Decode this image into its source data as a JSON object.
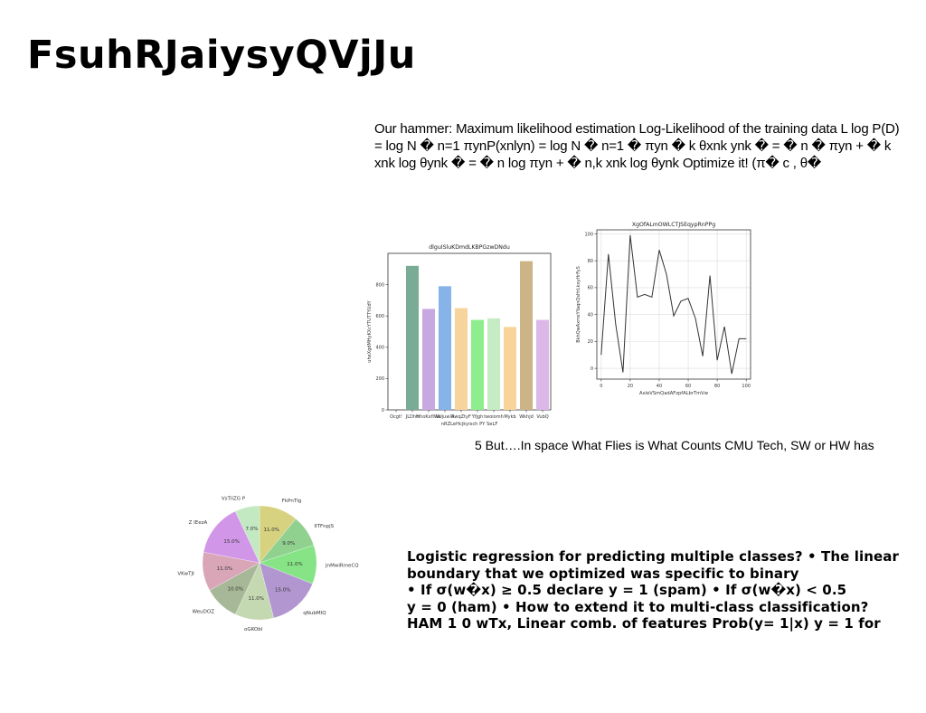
{
  "slide": {
    "title": "FsuhRJaiysyQVjJu",
    "paragraph1": "Our hammer: Maximum likelihood estimation Log-Likelihood of the training data L log P(D) = log N � n=1 πynP(xnlyn) = log N � n=1 � πyn � k θxnk ynk � = � n � πyn + � k xnk log θynk � = � n log πyn + � n,k xnk log θynk Optimize it! (π� c , θ�",
    "paragraph2": "5 But….In space What Flies is What Counts CMU Tech, SW or HW has",
    "paragraph3_lines": [
      "Logistic regression for predicting multiple classes? • The linear",
      "boundary that we optimized was specific to binary",
      "• If σ(w�x) ≥ 0.5 declare y = 1 (spam) • If σ(w�x) < 0.5",
      "y = 0 (ham) • How to extend it to multi-class classification?",
      "HAM 1 0 wTx, Linear comb. of features Prob(y= 1|x) y = 1 for"
    ]
  },
  "chart_data": [
    {
      "type": "bar",
      "title": "dlguISluKDmdLKBPGzwDNdu",
      "xlabel": "nRZLeHcjkyisch PY SeLF",
      "ylabel": "uheXgdMHyKXcYTUTTYUdY",
      "categories": [
        "Ocgt!",
        "JLDhh",
        "HhoKxfIWe",
        "hUjuwXl",
        "AwqZtyF",
        "Yfjgh",
        "twoiomh",
        "Mykb",
        "Wkhjd",
        "VubQ"
      ],
      "values": [
        0,
        920,
        645,
        790,
        650,
        575,
        585,
        530,
        950,
        575
      ],
      "colors": [
        "#2ca02c",
        "#7aab95",
        "#c8a8e0",
        "#86b3e8",
        "#f7d49c",
        "#8eee8e",
        "#c6ecc6",
        "#f8d49a",
        "#cdb486",
        "#dcb8e8"
      ],
      "ylim": [
        0,
        1000
      ],
      "yticks": [
        0,
        200,
        400,
        600,
        800
      ]
    },
    {
      "type": "line",
      "title": "XgOfALmOWLCTJSEqypRnPPg",
      "xlabel": "AxleVSmQadAFzpfALbrTmVw",
      "ylabel": "BkhQwAxmsYYaqnQsHrLkxyHrFyS",
      "x": [
        0,
        5,
        10,
        15,
        20,
        25,
        30,
        35,
        40,
        45,
        50,
        55,
        60,
        65,
        70,
        75,
        80,
        85,
        90,
        95,
        100
      ],
      "y": [
        10,
        85,
        33,
        -3,
        99,
        53,
        55,
        53,
        88,
        70,
        39,
        50,
        52,
        37,
        9,
        69,
        6,
        31,
        -4,
        22,
        22
      ],
      "xlim": [
        -3,
        103
      ],
      "ylim": [
        -8,
        103
      ],
      "xticks": [
        0,
        20,
        40,
        60,
        80,
        100
      ],
      "yticks": [
        0,
        20,
        40,
        60,
        80,
        100
      ],
      "grid": true,
      "color": "#333333"
    },
    {
      "type": "pie",
      "labels": [
        "FkPnTlg",
        "IITFnpjS",
        "JnMwiRmeCQ",
        "qNubMIQ",
        "oGKObl",
        "WeuDOZ",
        "VKwTJI",
        "Z IEezA",
        "VsTIiZG P"
      ],
      "values": [
        11.0,
        9.0,
        11.0,
        15.0,
        11.0,
        10.0,
        11.0,
        15.0,
        7.0
      ],
      "pct_labels": [
        "11.0%",
        "9.0%",
        "11.0%",
        "15.0%",
        "11.0%",
        "10.0%",
        "11.0%",
        "15.0%",
        "7.0%"
      ],
      "colors": [
        "#d7d27f",
        "#90d190",
        "#86e486",
        "#b296d0",
        "#c4d9b1",
        "#a7b898",
        "#d9a6b8",
        "#d296e8",
        "#c3e9c3"
      ]
    }
  ]
}
